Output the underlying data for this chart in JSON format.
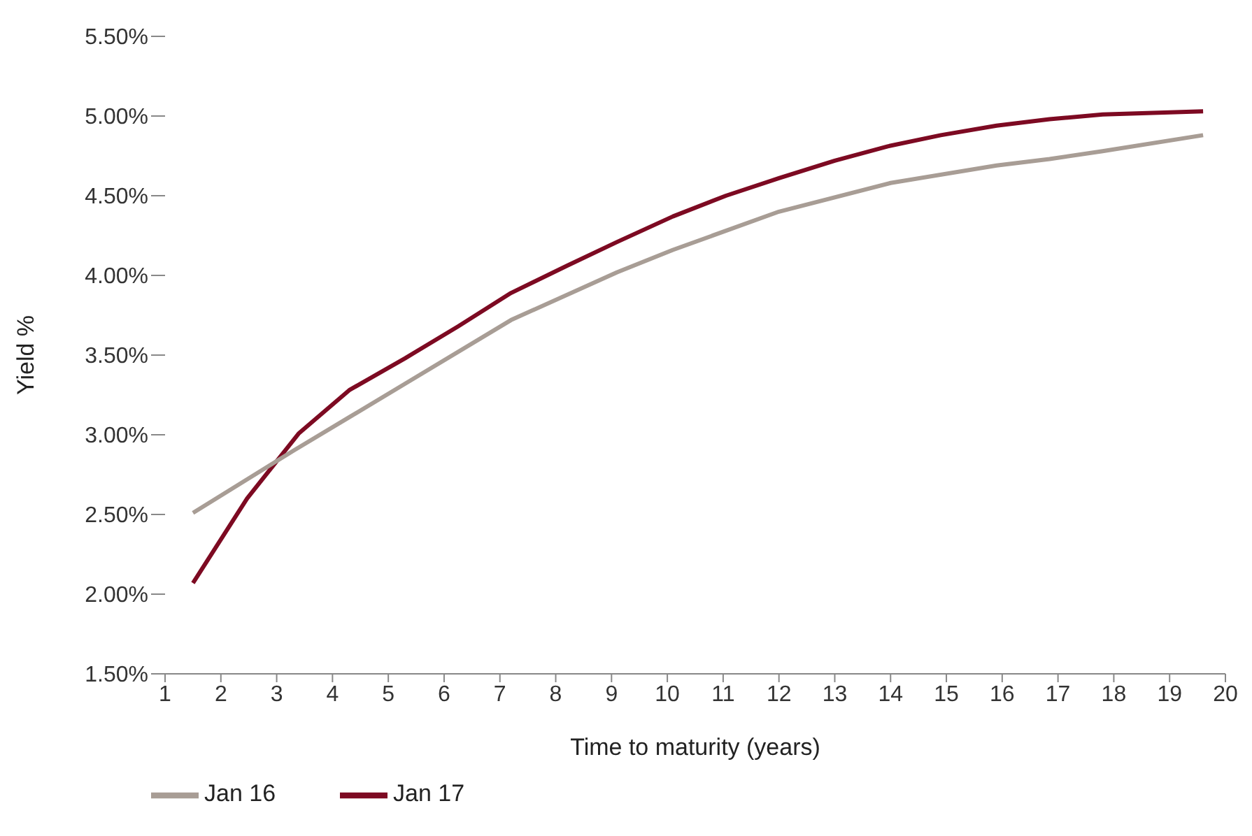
{
  "chart_data": {
    "type": "line",
    "xlabel": "Time to maturity (years)",
    "ylabel": "Yield %",
    "xlim": [
      1,
      20
    ],
    "xticks": [
      1,
      2,
      3,
      4,
      5,
      6,
      7,
      8,
      9,
      10,
      11,
      12,
      13,
      14,
      15,
      16,
      17,
      18,
      19,
      20
    ],
    "ylim": [
      1.5,
      5.5
    ],
    "yticks": [
      {
        "value": 1.5,
        "label": "1.50%"
      },
      {
        "value": 2,
        "label": "2.00%"
      },
      {
        "value": 2.5,
        "label": "2.50%"
      },
      {
        "value": 3,
        "label": "3.00%"
      },
      {
        "value": 3.5,
        "label": "3.50%"
      },
      {
        "value": 4,
        "label": "4.00%"
      },
      {
        "value": 4.5,
        "label": "4.50%"
      },
      {
        "value": 5,
        "label": "5.00%"
      },
      {
        "value": 5.5,
        "label": "5.50%"
      }
    ],
    "grid": false,
    "legend": "bottom left",
    "marker": "none",
    "line_style": "solid",
    "series": [
      {
        "name": "Jan 17",
        "color": "#7d0a22",
        "x": [
          1.5,
          2.47,
          3.4,
          4.3,
          5.3,
          6.25,
          7.2,
          8.2,
          9.1,
          10.1,
          11.05,
          12,
          13,
          13.95,
          14.9,
          15.9,
          16.85,
          17.8,
          19.6
        ],
        "values": [
          2.07,
          2.6,
          3.01,
          3.28,
          3.48,
          3.68,
          3.89,
          4.06,
          4.21,
          4.37,
          4.5,
          4.61,
          4.72,
          4.81,
          4.88,
          4.94,
          4.98,
          5.01,
          5.03
        ]
      },
      {
        "name": "Jan 16",
        "color": "#a89d95",
        "x": [
          1.5,
          3.3,
          4.3,
          5.3,
          7.2,
          9.1,
          10.1,
          12,
          14,
          15.9,
          16.85,
          17.8,
          19.6
        ],
        "values": [
          2.51,
          2.9,
          3.11,
          3.32,
          3.72,
          4.02,
          4.16,
          4.4,
          4.58,
          4.69,
          4.73,
          4.78,
          4.88
        ]
      }
    ]
  }
}
